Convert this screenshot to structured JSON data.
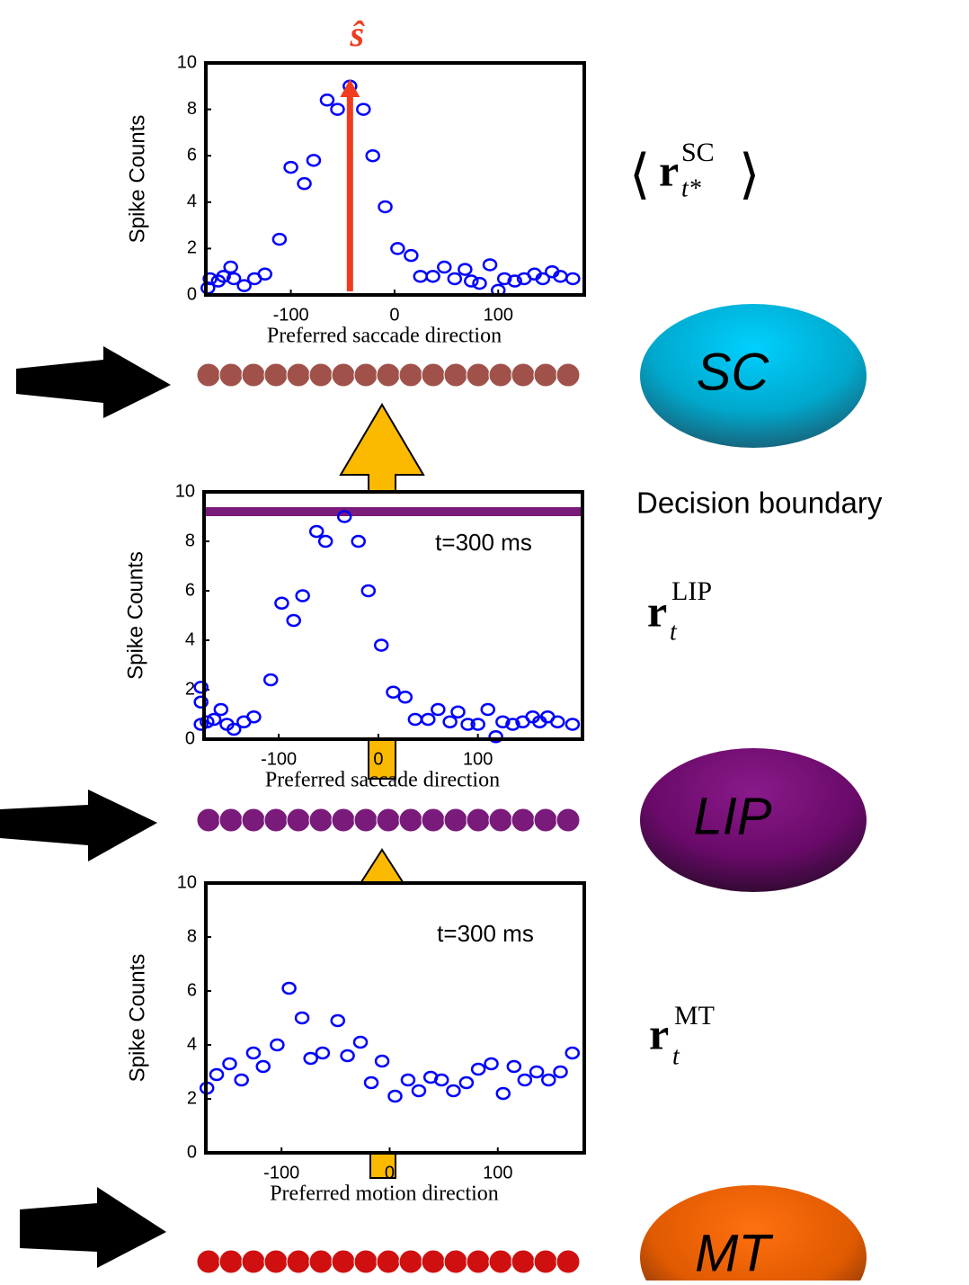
{
  "chart_data": [
    {
      "type": "scatter",
      "xlabel": "Preferred saccade direction",
      "ylabel": "Spike Counts",
      "color": "#0000ff",
      "x": [
        -180,
        -178,
        -170,
        -165,
        -158,
        -155,
        -145,
        -135,
        -125,
        -111,
        -100,
        -87,
        -78,
        -65,
        -55,
        -43,
        -30,
        -21,
        -9,
        3,
        16,
        25,
        37,
        48,
        58,
        68,
        74,
        82,
        92,
        100,
        106,
        116,
        125,
        135,
        143,
        152,
        160,
        172
      ],
      "values": [
        0.3,
        0.7,
        0.6,
        0.8,
        1.2,
        0.7,
        0.4,
        0.7,
        0.9,
        2.4,
        5.5,
        4.8,
        5.8,
        8.4,
        8.0,
        9.0,
        8.0,
        6.0,
        3.8,
        2.0,
        1.7,
        0.8,
        0.8,
        1.2,
        0.7,
        1.1,
        0.6,
        0.5,
        1.3,
        0.2,
        0.7,
        0.6,
        0.7,
        0.9,
        0.7,
        1.0,
        0.8,
        0.7
      ],
      "xlim": [
        -182,
        183
      ],
      "ylim": [
        0,
        10
      ],
      "xticks": [
        -100,
        0,
        100
      ],
      "yticks": [
        0,
        2,
        4,
        6,
        8,
        10
      ],
      "estimate": {
        "label": "ŝ",
        "x": -43,
        "value": 9.3,
        "color": "#f03c1e"
      }
    },
    {
      "type": "scatter",
      "xlabel": "Preferred saccade direction",
      "ylabel": "Spike Counts",
      "color": "#0000ff",
      "annotation": "t=300 ms",
      "x": [
        -178,
        -178,
        -178,
        -172,
        -165,
        -158,
        -152,
        -145,
        -135,
        -125,
        -108,
        -97,
        -85,
        -76,
        -62,
        -53,
        -34,
        -20,
        -10,
        3,
        15,
        27,
        37,
        50,
        60,
        72,
        80,
        90,
        100,
        110,
        118,
        125,
        135,
        145,
        155,
        162,
        170,
        180,
        195
      ],
      "values": [
        0.6,
        1.5,
        2.1,
        0.7,
        0.8,
        1.2,
        0.6,
        0.4,
        0.7,
        0.9,
        2.4,
        5.5,
        4.8,
        5.8,
        8.4,
        8.0,
        9.0,
        8.0,
        6.0,
        3.8,
        1.9,
        1.7,
        0.8,
        0.8,
        1.2,
        0.7,
        1.1,
        0.6,
        0.6,
        1.2,
        0.1,
        0.7,
        0.6,
        0.7,
        0.9,
        0.7,
        0.9,
        0.7,
        0.6
      ],
      "xlim": [
        -175,
        205
      ],
      "ylim": [
        0,
        10
      ],
      "xticks": [
        -100,
        0,
        100
      ],
      "yticks": [
        0,
        2,
        4,
        6,
        8,
        10
      ],
      "decision_boundary": {
        "value": 9.2,
        "color": "#7a1a7a"
      }
    },
    {
      "type": "scatter",
      "xlabel": "Preferred motion direction",
      "ylabel": "Spike Counts",
      "color": "#0000ff",
      "annotation": "t=300 ms",
      "x": [
        -169,
        -160,
        -148,
        -137,
        -126,
        -117,
        -104,
        -93,
        -81,
        -73,
        -62,
        -48,
        -39,
        -27,
        -17,
        -7,
        5,
        17,
        27,
        38,
        48,
        59,
        71,
        82,
        94,
        105,
        115,
        125,
        136,
        147,
        158,
        169
      ],
      "values": [
        2.4,
        2.9,
        3.3,
        2.7,
        3.7,
        3.2,
        4.0,
        6.1,
        5.0,
        3.5,
        3.7,
        4.9,
        3.6,
        4.1,
        2.6,
        3.4,
        2.1,
        2.7,
        2.3,
        2.8,
        2.7,
        2.3,
        2.6,
        3.1,
        3.3,
        2.2,
        3.2,
        2.7,
        3.0,
        2.7,
        3.0,
        3.7
      ],
      "xlim": [
        -170,
        180
      ],
      "ylim": [
        0,
        10
      ],
      "xticks": [
        -100,
        0,
        100
      ],
      "yticks": [
        0,
        2,
        4,
        6,
        8,
        10
      ]
    }
  ],
  "areas": [
    "SC",
    "LIP",
    "MT"
  ],
  "decision_label": "Decision boundary",
  "population_labels": [
    {
      "symbol": "r",
      "sub": "t*",
      "sup": "SC"
    },
    {
      "symbol": "r",
      "sub": "t",
      "sup": "LIP"
    },
    {
      "symbol": "r",
      "sub": "t",
      "sup": "MT"
    }
  ]
}
